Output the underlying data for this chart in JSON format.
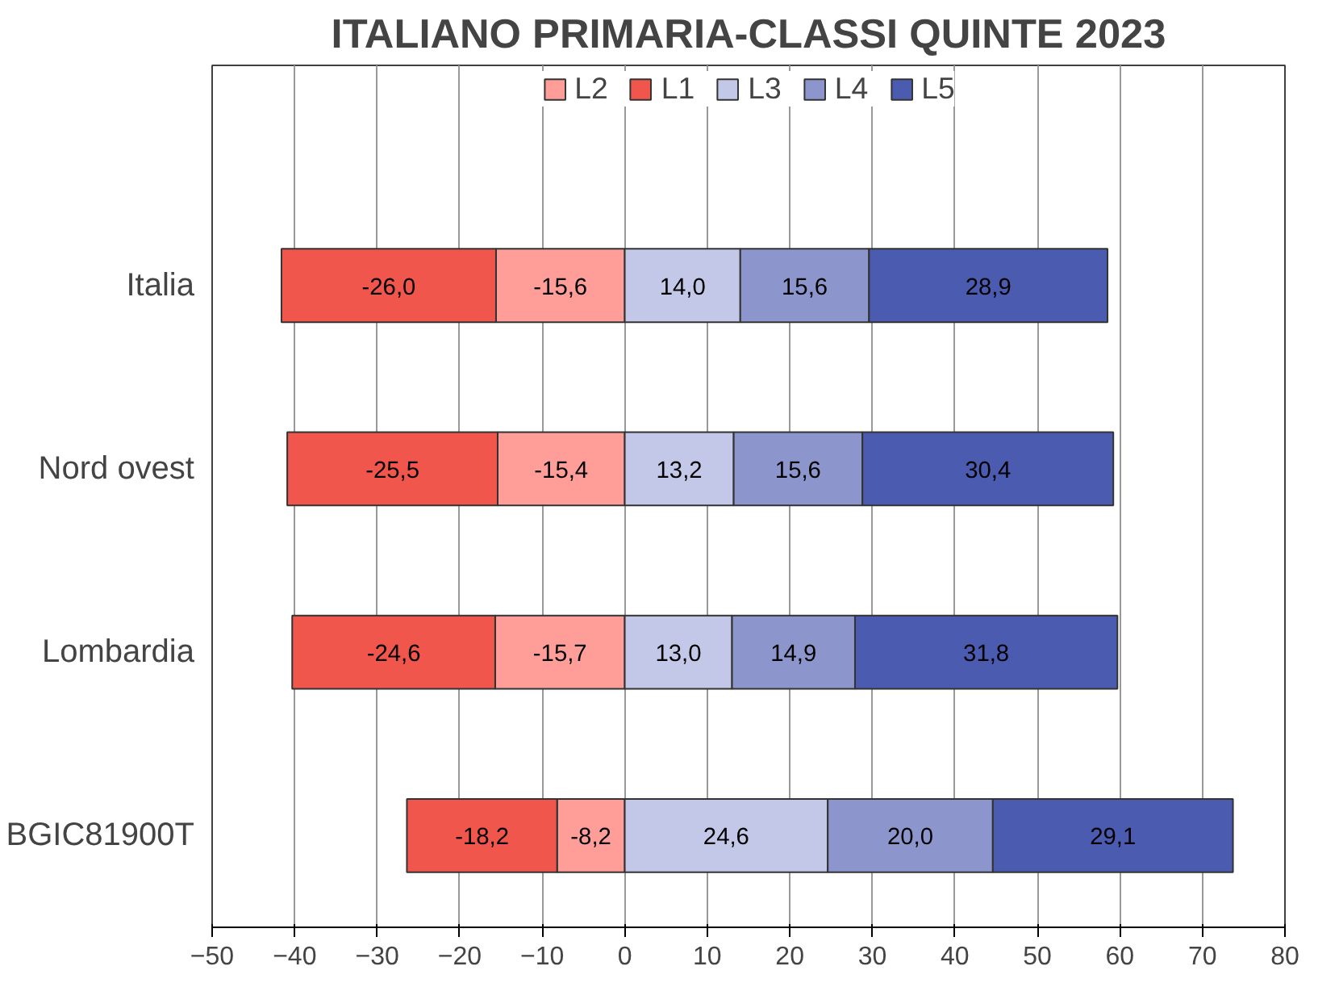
{
  "chart_data": {
    "type": "bar",
    "orientation": "horizontal",
    "stacked": true,
    "title": "ITALIANO PRIMARIA-CLASSI QUINTE 2023",
    "categories": [
      "Italia",
      "Nord ovest",
      "Lombardia",
      "BGIC81900T"
    ],
    "series": [
      {
        "name": "L2",
        "color": "#ff9e99",
        "values": [
          -15.6,
          -15.4,
          -15.7,
          -8.2
        ],
        "value_labels": [
          "-15,6",
          "-15,4",
          "-15,7",
          "-8,2"
        ]
      },
      {
        "name": "L1",
        "color": "#f0564b",
        "values": [
          -26.0,
          -25.5,
          -24.6,
          -18.2
        ],
        "value_labels": [
          "-26,0",
          "-25,5",
          "-24,6",
          "-18,2"
        ]
      },
      {
        "name": "L3",
        "color": "#c3c8e8",
        "values": [
          14.0,
          13.2,
          13.0,
          24.6
        ],
        "value_labels": [
          "14,0",
          "13,2",
          "13,0",
          "24,6"
        ]
      },
      {
        "name": "L4",
        "color": "#8c96cc",
        "values": [
          15.6,
          15.6,
          14.9,
          20.0
        ],
        "value_labels": [
          "15,6",
          "15,6",
          "14,9",
          "20,0"
        ]
      },
      {
        "name": "L5",
        "color": "#4a5bb0",
        "values": [
          28.9,
          30.4,
          31.8,
          29.1
        ],
        "value_labels": [
          "28,9",
          "30,4",
          "31,8",
          "29,1"
        ]
      }
    ],
    "xlim": [
      -50,
      80
    ],
    "xticks": [
      -50,
      -40,
      -30,
      -20,
      -10,
      0,
      10,
      20,
      30,
      40,
      50,
      60,
      70,
      80
    ],
    "grid": "x",
    "legend": "top"
  }
}
